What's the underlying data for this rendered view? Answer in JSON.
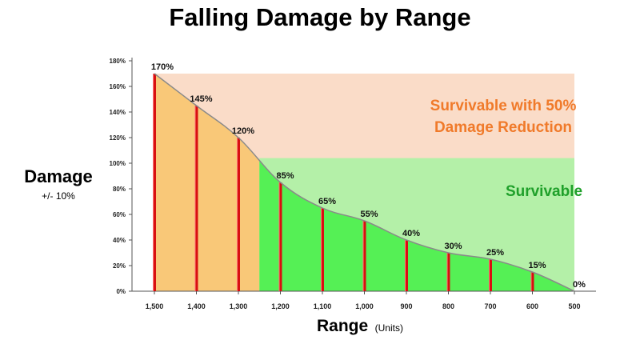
{
  "chart_data": {
    "type": "line",
    "title": "Falling Damage by Range",
    "ylabel": "Damage",
    "ylabel_sub": "+/- 10%",
    "xlabel": "Range",
    "xlabel_sub": "(Units)",
    "x": [
      1500,
      1400,
      1300,
      1200,
      1100,
      1000,
      900,
      800,
      700,
      600,
      500
    ],
    "x_tick_labels": [
      "1,500",
      "1,400",
      "1,300",
      "1,200",
      "1,100",
      "1,000",
      "900",
      "800",
      "700",
      "600",
      "500"
    ],
    "values": [
      170,
      145,
      120,
      85,
      65,
      55,
      40,
      30,
      25,
      15,
      0
    ],
    "data_labels": [
      "170%",
      "145%",
      "120%",
      "85%",
      "65%",
      "55%",
      "40%",
      "30%",
      "25%",
      "15%",
      "0%"
    ],
    "y_ticks": [
      0,
      20,
      40,
      60,
      80,
      100,
      120,
      140,
      160,
      180
    ],
    "y_tick_labels": [
      "0%",
      "20%",
      "40%",
      "60%",
      "80%",
      "100%",
      "120%",
      "140%",
      "160%",
      "180%"
    ],
    "ylim": [
      0,
      180
    ],
    "xlim": [
      1500,
      500
    ],
    "x_reversed": true,
    "zones": [
      {
        "label_line1": "Survivable with 50%",
        "label_line2": "Damage Reduction",
        "x_range": [
          1500,
          500
        ],
        "y_range": [
          100,
          170
        ],
        "color": "#fadcc8",
        "text_color": "#f07a2a"
      },
      {
        "label_line1": "Survivable",
        "x_range": [
          1250,
          500
        ],
        "y_range": [
          0,
          104
        ],
        "color": "#b4f0a8",
        "text_color": "#1fa02a"
      }
    ],
    "fill_colors": {
      "above_survivable": "#f9c878",
      "survivable": "#55f055"
    },
    "bar_color": "#d81010",
    "line_color": "#8a8a8a",
    "grid": false
  }
}
